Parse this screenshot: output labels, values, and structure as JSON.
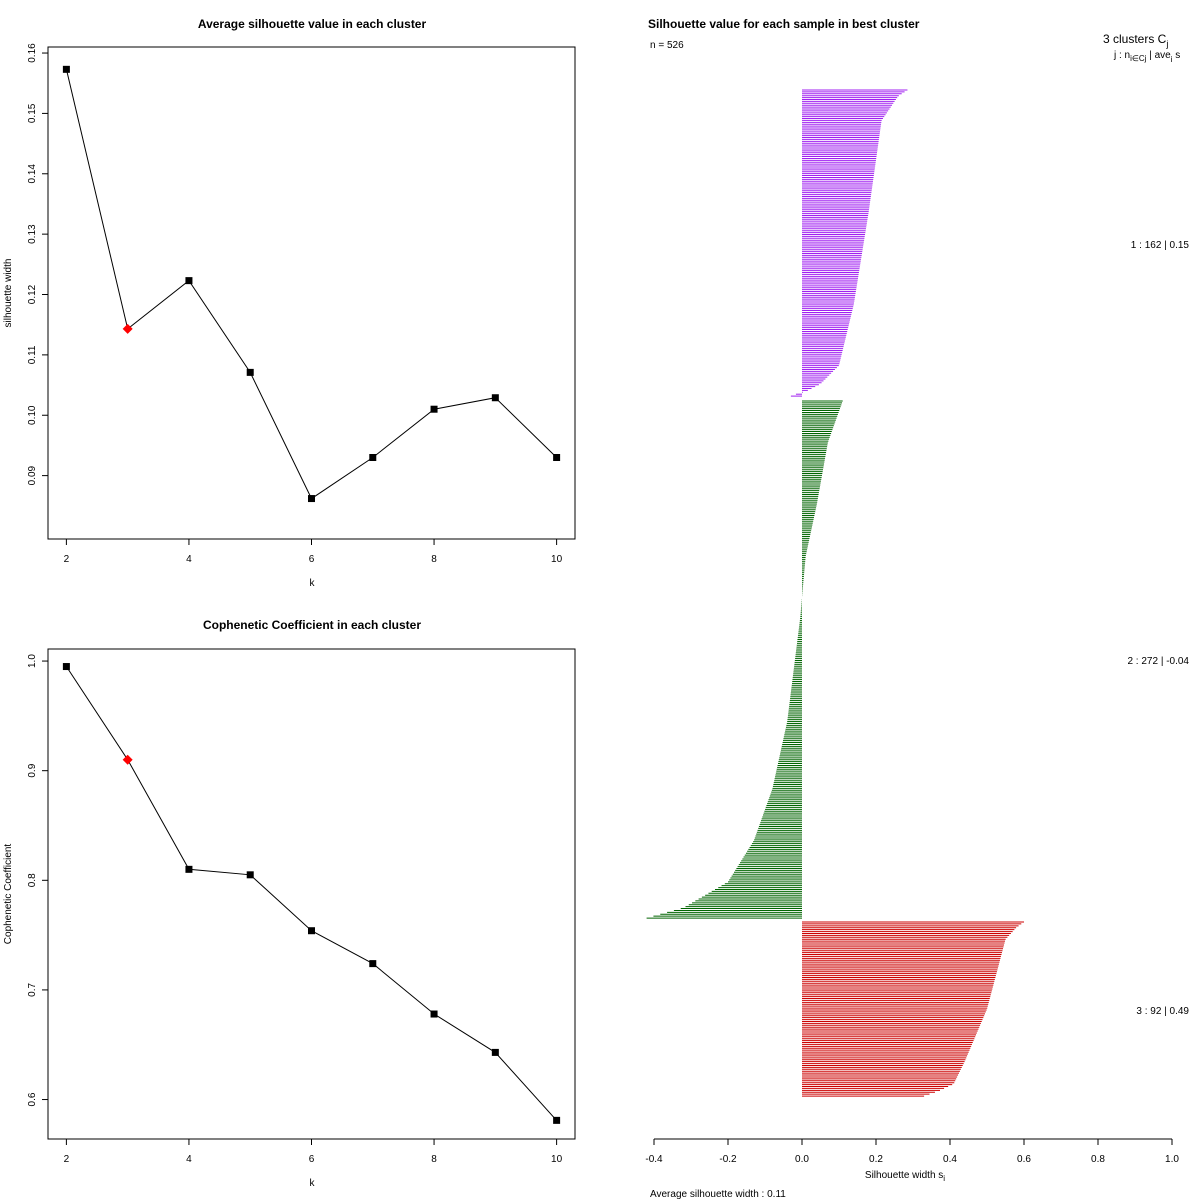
{
  "colors": {
    "line": "#000000",
    "highlight": "#ff0000",
    "cluster1": "#a020f0",
    "cluster2": "#006400",
    "cluster3": "#cc0000"
  },
  "chart_data": [
    {
      "type": "line",
      "title": "Average silhouette value in each cluster",
      "xlabel": "k",
      "ylabel": "silhouette width",
      "x": [
        2,
        3,
        4,
        5,
        6,
        7,
        8,
        9,
        10
      ],
      "values": [
        0.1573,
        0.1143,
        0.1223,
        0.1071,
        0.0862,
        0.093,
        0.101,
        0.1029,
        0.093
      ],
      "highlight_index": 1,
      "xlim": [
        1.7,
        10.3
      ],
      "ylim": [
        0.0795,
        0.161
      ],
      "xticks": [
        2,
        4,
        6,
        8,
        10
      ],
      "xtick_labels": [
        "2",
        "4",
        "6",
        "8",
        "10"
      ],
      "yticks": [
        0.09,
        0.1,
        0.11,
        0.12,
        0.13,
        0.14,
        0.15,
        0.16
      ],
      "ytick_labels": [
        "0.09",
        "0.10",
        "0.11",
        "0.12",
        "0.13",
        "0.14",
        "0.15",
        "0.16"
      ]
    },
    {
      "type": "line",
      "title": "Cophenetic Coefficient in each cluster",
      "xlabel": "k",
      "ylabel": "Cophenetic Coefficient",
      "x": [
        2,
        3,
        4,
        5,
        6,
        7,
        8,
        9,
        10
      ],
      "values": [
        0.995,
        0.91,
        0.81,
        0.805,
        0.754,
        0.724,
        0.678,
        0.643,
        0.581
      ],
      "highlight_index": 1,
      "xlim": [
        1.7,
        10.3
      ],
      "ylim": [
        0.564,
        1.011
      ],
      "xticks": [
        2,
        4,
        6,
        8,
        10
      ],
      "xtick_labels": [
        "2",
        "4",
        "6",
        "8",
        "10"
      ],
      "yticks": [
        0.6,
        0.7,
        0.8,
        0.9,
        1.0
      ],
      "ytick_labels": [
        "0.6",
        "0.7",
        "0.8",
        "0.9",
        "1.0"
      ]
    },
    {
      "type": "bar",
      "orientation": "horizontal",
      "title": "Silhouette value for each sample in best cluster",
      "n_label": "n = 526",
      "xlabel": "Silhouette width s",
      "xlabel_sub": "i",
      "footer": "Average silhouette width :  0.11",
      "legend_title": "3  clusters  C",
      "legend_title_sub": "j",
      "legend_header": "j :  n",
      "legend_header_mid": " | ave",
      "legend_header_sub2": "i∈Cj",
      "legend_header_end": " s",
      "legend_header_sub3": "i",
      "xlim": [
        -0.4,
        1.0
      ],
      "xticks": [
        -0.4,
        -0.2,
        0.0,
        0.2,
        0.4,
        0.6,
        0.8,
        1.0
      ],
      "xtick_labels": [
        "-0.4",
        "-0.2",
        "0.0",
        "0.2",
        "0.4",
        "0.6",
        "0.8",
        "1.0"
      ],
      "clusters": [
        {
          "id": 1,
          "label": "1 :   162  |  0.15",
          "n": 162,
          "avg": 0.15,
          "color": "#a020f0",
          "profile": [
            [
              0,
              0.285
            ],
            [
              0.02,
              0.26
            ],
            [
              0.1,
              0.215
            ],
            [
              0.4,
              0.18
            ],
            [
              0.7,
              0.14
            ],
            [
              0.9,
              0.1
            ],
            [
              0.96,
              0.05
            ],
            [
              0.985,
              0.01
            ],
            [
              0.995,
              -0.02
            ],
            [
              1,
              -0.03
            ]
          ]
        },
        {
          "id": 2,
          "label": "2 :   272  |  -0.04",
          "n": 272,
          "avg": -0.04,
          "color": "#006400",
          "profile": [
            [
              0,
              0.11
            ],
            [
              0.08,
              0.07
            ],
            [
              0.2,
              0.04
            ],
            [
              0.3,
              0.01
            ],
            [
              0.42,
              -0.005
            ],
            [
              0.62,
              -0.04
            ],
            [
              0.75,
              -0.08
            ],
            [
              0.85,
              -0.13
            ],
            [
              0.93,
              -0.2
            ],
            [
              0.98,
              -0.32
            ],
            [
              1,
              -0.42
            ]
          ]
        },
        {
          "id": 3,
          "label": "3 :   92  |  0.49",
          "n": 92,
          "avg": 0.49,
          "color": "#cc0000",
          "profile": [
            [
              0,
              0.6
            ],
            [
              0.03,
              0.58
            ],
            [
              0.1,
              0.55
            ],
            [
              0.5,
              0.5
            ],
            [
              0.8,
              0.44
            ],
            [
              0.93,
              0.41
            ],
            [
              0.97,
              0.37
            ],
            [
              1,
              0.33
            ]
          ]
        }
      ]
    }
  ]
}
